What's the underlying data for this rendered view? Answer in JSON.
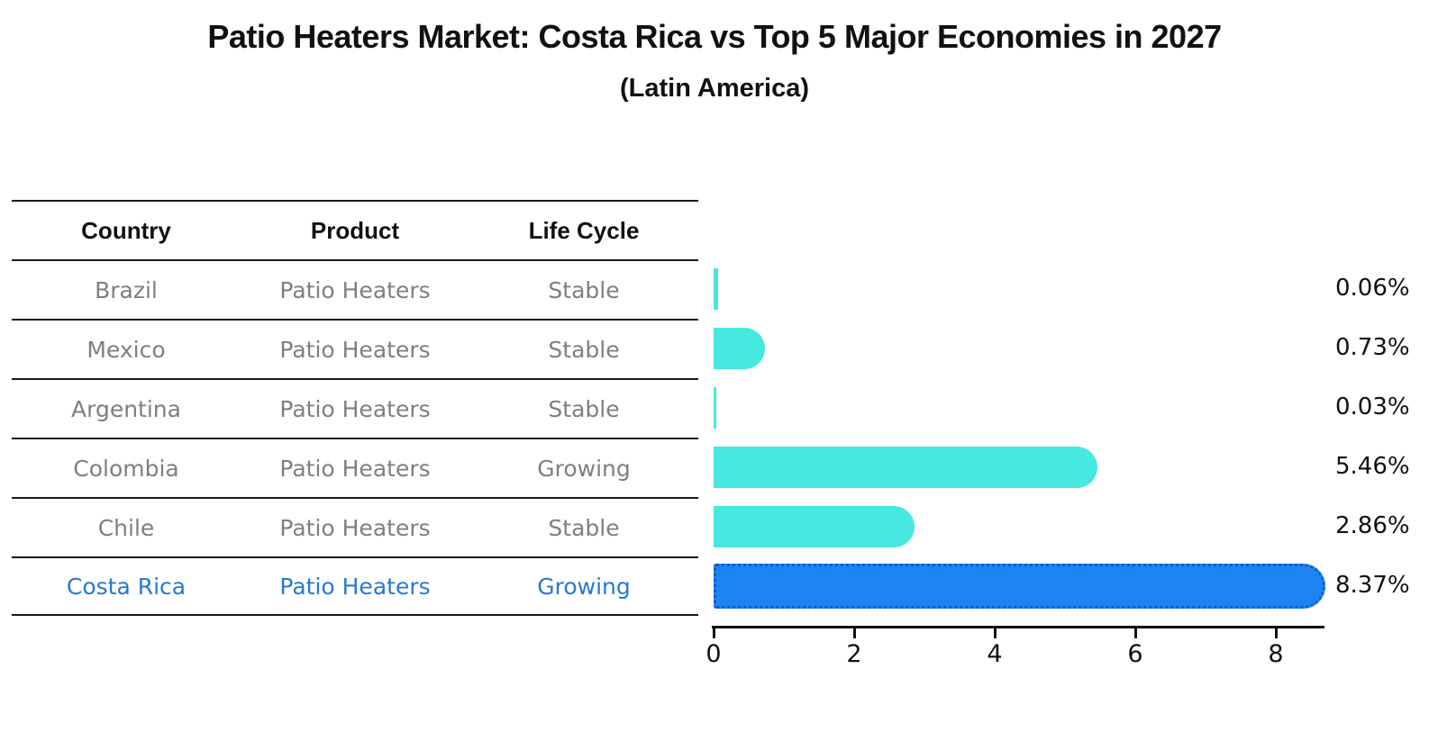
{
  "title": "Patio Heaters Market: Costa Rica vs Top 5 Major Economies in 2027",
  "subtitle": "(Latin America)",
  "table": {
    "headers": [
      "Country",
      "Product",
      "Life Cycle"
    ],
    "rows": [
      {
        "country": "Brazil",
        "product": "Patio Heaters",
        "life_cycle": "Stable",
        "highlight": false
      },
      {
        "country": "Mexico",
        "product": "Patio Heaters",
        "life_cycle": "Stable",
        "highlight": false
      },
      {
        "country": "Argentina",
        "product": "Patio Heaters",
        "life_cycle": "Stable",
        "highlight": false
      },
      {
        "country": "Colombia",
        "product": "Patio Heaters",
        "life_cycle": "Growing",
        "highlight": false
      },
      {
        "country": "Chile",
        "product": "Patio Heaters",
        "life_cycle": "Stable",
        "highlight": false
      },
      {
        "country": "Costa Rica",
        "product": "Patio Heaters",
        "life_cycle": "Growing",
        "highlight": true
      }
    ]
  },
  "chart_data": {
    "type": "bar",
    "orientation": "horizontal",
    "title": "Patio Heaters Market: Costa Rica vs Top 5 Major Economies in 2027 (Latin America)",
    "categories": [
      "Brazil",
      "Mexico",
      "Argentina",
      "Colombia",
      "Chile",
      "Costa Rica"
    ],
    "values": [
      0.06,
      0.73,
      0.03,
      5.46,
      2.86,
      8.37
    ],
    "labels": [
      "0.06%",
      "0.73%",
      "0.03%",
      "5.46%",
      "2.86%",
      "8.37%"
    ],
    "x_ticks": [
      "0",
      "2",
      "4",
      "6",
      "8"
    ],
    "xlim": [
      0,
      8.7
    ],
    "grid": false,
    "legend": "none",
    "bar_color": "#47E8E0",
    "highlight_color": "#1B84F0",
    "highlight_border_color": "#0d5ec9",
    "highlight_index": 5
  },
  "colors": {
    "highlight_text": "#2679D4",
    "row_text": "#7f7f7f",
    "header_text": "#111111",
    "axis": "#111111",
    "background": "#ffffff"
  }
}
